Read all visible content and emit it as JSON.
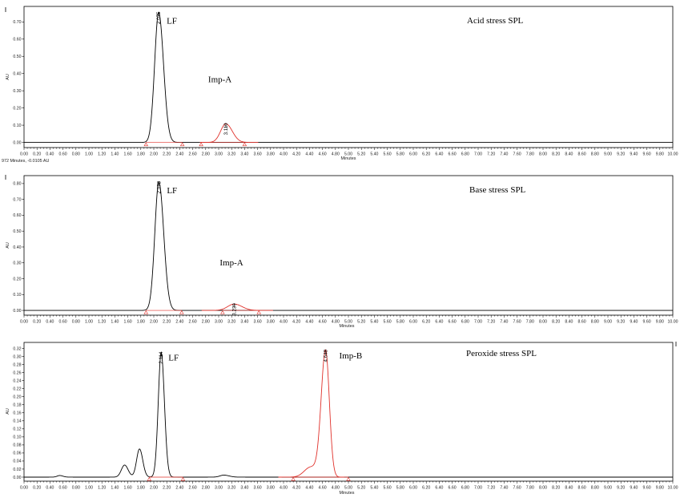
{
  "status_text": "972 Minutes, -0.0105 AU",
  "chart_data": [
    {
      "type": "line",
      "title": "Acid stress SPL",
      "xlabel": "Minutes",
      "ylabel": "AU",
      "xlim": [
        0,
        10
      ],
      "x_ticks": [
        "0.00",
        "0.20",
        "0.40",
        "0.60",
        "0.80",
        "1.00",
        "1.20",
        "1.40",
        "1.60",
        "1.80",
        "2.00",
        "2.20",
        "2.40",
        "2.60",
        "2.80",
        "3.00",
        "3.20",
        "3.40",
        "3.60",
        "3.80",
        "4.00",
        "4.20",
        "4.40",
        "4.60",
        "4.80",
        "5.00",
        "5.20",
        "5.40",
        "5.60",
        "5.80",
        "6.00",
        "6.20",
        "6.40",
        "6.60",
        "6.80",
        "7.00",
        "7.20",
        "7.40",
        "7.60",
        "7.80",
        "8.00",
        "8.20",
        "8.40",
        "8.60",
        "8.80",
        "9.00",
        "9.20",
        "9.40",
        "9.60",
        "9.80",
        "10.00"
      ],
      "ylim": [
        -0.03,
        0.79
      ],
      "y_ticks": [
        0.0,
        0.1,
        0.2,
        0.3,
        0.4,
        0.5,
        0.6,
        0.7
      ],
      "y_tick_labels": [
        "0.00",
        "0.10",
        "0.20",
        "0.30",
        "0.40",
        "0.50",
        "0.60",
        "0.70"
      ],
      "series": [
        {
          "color": "#000000",
          "peaks": [
            {
              "rt": 2.075,
              "label": "2.075",
              "name": "LF",
              "height": 0.755,
              "sigma_left": 0.062,
              "sigma_right": 0.075
            }
          ],
          "baseline_segments": [
            [
              1.88,
              2.44
            ]
          ],
          "integration_marks": [
            1.88,
            2.44
          ]
        },
        {
          "color": "#e0302a",
          "peaks": [
            {
              "rt": 3.11,
              "label": "3.110",
              "name": "Imp-A",
              "height": 0.108,
              "sigma_left": 0.08,
              "sigma_right": 0.1
            }
          ],
          "baseline_segments": [
            [
              2.73,
              3.4
            ]
          ],
          "integration_marks": [
            2.73,
            3.4
          ]
        }
      ]
    },
    {
      "type": "line",
      "title": "Base stress SPL",
      "xlabel": "Minutes",
      "ylabel": "AU",
      "xlim": [
        0,
        10
      ],
      "x_ticks": [
        "0.00",
        "0.20",
        "0.40",
        "0.60",
        "0.80",
        "1.00",
        "1.20",
        "1.40",
        "1.60",
        "1.80",
        "2.00",
        "2.20",
        "2.40",
        "2.60",
        "2.80",
        "3.00",
        "3.20",
        "3.40",
        "3.60",
        "3.80",
        "4.00",
        "4.20",
        "4.40",
        "4.60",
        "4.80",
        "5.00",
        "5.20",
        "5.40",
        "5.60",
        "5.80",
        "6.00",
        "6.20",
        "6.40",
        "6.60",
        "6.80",
        "7.00",
        "7.20",
        "7.40",
        "7.60",
        "7.80",
        "8.00",
        "8.20",
        "8.40",
        "8.60",
        "8.80",
        "9.00",
        "9.20",
        "9.40",
        "9.60",
        "9.80",
        "10.00"
      ],
      "ylim": [
        -0.03,
        0.85
      ],
      "y_ticks": [
        0.0,
        0.1,
        0.2,
        0.3,
        0.4,
        0.5,
        0.6,
        0.7,
        0.8
      ],
      "y_tick_labels": [
        "0.00",
        "0.10",
        "0.20",
        "0.30",
        "0.40",
        "0.50",
        "0.60",
        "0.70",
        "0.80"
      ],
      "series": [
        {
          "color": "#000000",
          "peaks": [
            {
              "rt": 2.078,
              "label": "2.078",
              "name": "LF",
              "height": 0.81,
              "sigma_left": 0.062,
              "sigma_right": 0.075
            }
          ],
          "baseline_segments": [
            [
              1.88,
              2.43
            ]
          ],
          "integration_marks": [
            1.88,
            2.43
          ]
        },
        {
          "color": "#e0302a",
          "peaks": [
            {
              "rt": 3.239,
              "label": "3.239",
              "name": "Imp-A",
              "height": 0.04,
              "sigma_left": 0.1,
              "sigma_right": 0.12
            }
          ],
          "baseline_segments": [
            [
              3.06,
              3.62
            ]
          ],
          "integration_marks": [
            3.06,
            3.62
          ]
        }
      ]
    },
    {
      "type": "line",
      "title": "Peroxide stress SPL",
      "xlabel": "Minutes",
      "ylabel": "AU",
      "xlim": [
        0,
        10
      ],
      "x_ticks": [
        "0.00",
        "0.20",
        "0.40",
        "0.60",
        "0.80",
        "1.00",
        "1.20",
        "1.40",
        "1.60",
        "1.80",
        "2.00",
        "2.20",
        "2.40",
        "2.60",
        "2.80",
        "3.00",
        "3.20",
        "3.40",
        "3.60",
        "3.80",
        "4.00",
        "4.20",
        "4.40",
        "4.60",
        "4.80",
        "5.00",
        "5.20",
        "5.40",
        "5.60",
        "5.80",
        "6.00",
        "6.20",
        "6.40",
        "6.60",
        "6.80",
        "7.00",
        "7.20",
        "7.40",
        "7.60",
        "7.80",
        "8.00",
        "8.20",
        "8.40",
        "8.60",
        "8.80",
        "9.00",
        "9.20",
        "9.40",
        "9.60",
        "9.80",
        "10.00"
      ],
      "ylim": [
        -0.01,
        0.335
      ],
      "y_ticks": [
        0.0,
        0.02,
        0.04,
        0.06,
        0.08,
        0.1,
        0.12,
        0.14,
        0.16,
        0.18,
        0.2,
        0.22,
        0.24,
        0.26,
        0.28,
        0.3,
        0.32
      ],
      "y_tick_labels": [
        "0.00",
        "0.02",
        "0.04",
        "0.06",
        "0.08",
        "0.10",
        "0.12",
        "0.14",
        "0.16",
        "0.18",
        "0.20",
        "0.22",
        "0.24",
        "0.26",
        "0.28",
        "0.30",
        "0.32"
      ],
      "series": [
        {
          "color": "#000000",
          "peaks": [
            {
              "rt": 2.114,
              "label": "2.114",
              "name": "LF",
              "height": 0.31,
              "sigma_left": 0.045,
              "sigma_right": 0.05
            },
            {
              "rt": 0.55,
              "height": 0.004,
              "sigma_left": 0.04,
              "sigma_right": 0.05
            },
            {
              "rt": 1.55,
              "height": 0.03,
              "sigma_left": 0.05,
              "sigma_right": 0.055
            },
            {
              "rt": 1.78,
              "height": 0.07,
              "sigma_left": 0.045,
              "sigma_right": 0.05
            },
            {
              "rt": 3.08,
              "height": 0.005,
              "sigma_left": 0.06,
              "sigma_right": 0.08
            }
          ],
          "baseline_segments": [
            [
              1.93,
              2.45
            ]
          ],
          "integration_marks": [
            1.93,
            2.45
          ]
        },
        {
          "color": "#e0302a",
          "peaks": [
            {
              "rt": 4.648,
              "label": "4.648",
              "name": "Imp-B",
              "height": 0.315,
              "sigma_left": 0.068,
              "sigma_right": 0.058
            },
            {
              "rt": 4.42,
              "height": 0.025,
              "sigma_left": 0.1,
              "sigma_right": 0.1
            }
          ],
          "baseline_segments": [
            [
              4.15,
              5.0
            ]
          ],
          "integration_marks": [
            4.15,
            5.0
          ]
        }
      ]
    }
  ]
}
